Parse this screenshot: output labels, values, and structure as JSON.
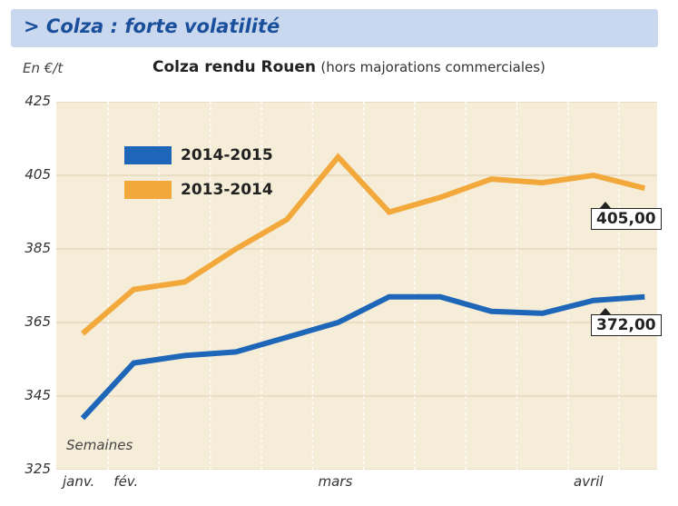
{
  "header": {
    "title": "> Colza : forte volatilité"
  },
  "chart_data": {
    "type": "line",
    "title": "Colza rendu Rouen",
    "subtitle": "(hors majorations commerciales)",
    "ylabel": "En €/t",
    "xlabel": "Semaines",
    "ylim": [
      325,
      425
    ],
    "yticks": [
      325,
      345,
      365,
      385,
      405,
      425
    ],
    "grid": true,
    "legend_position": "upper-left",
    "x_month_labels": [
      "janv.",
      "fév.",
      "mars",
      "avril"
    ],
    "x_month_label_index": [
      0,
      1,
      5,
      10
    ],
    "series": [
      {
        "name": "2014-2015",
        "color": "#1e66b8",
        "values": [
          339,
          354,
          356,
          357,
          361,
          365,
          372,
          372,
          368,
          367.5,
          371,
          372
        ]
      },
      {
        "name": "2013-2014",
        "color": "#f2a83a",
        "values": [
          362,
          374,
          376,
          385,
          393,
          410,
          395,
          399,
          404,
          403,
          405,
          401.5
        ]
      }
    ],
    "annotations": [
      {
        "text": "405,00",
        "series": "2013-2014"
      },
      {
        "text": "372,00",
        "series": "2014-2015"
      }
    ]
  }
}
